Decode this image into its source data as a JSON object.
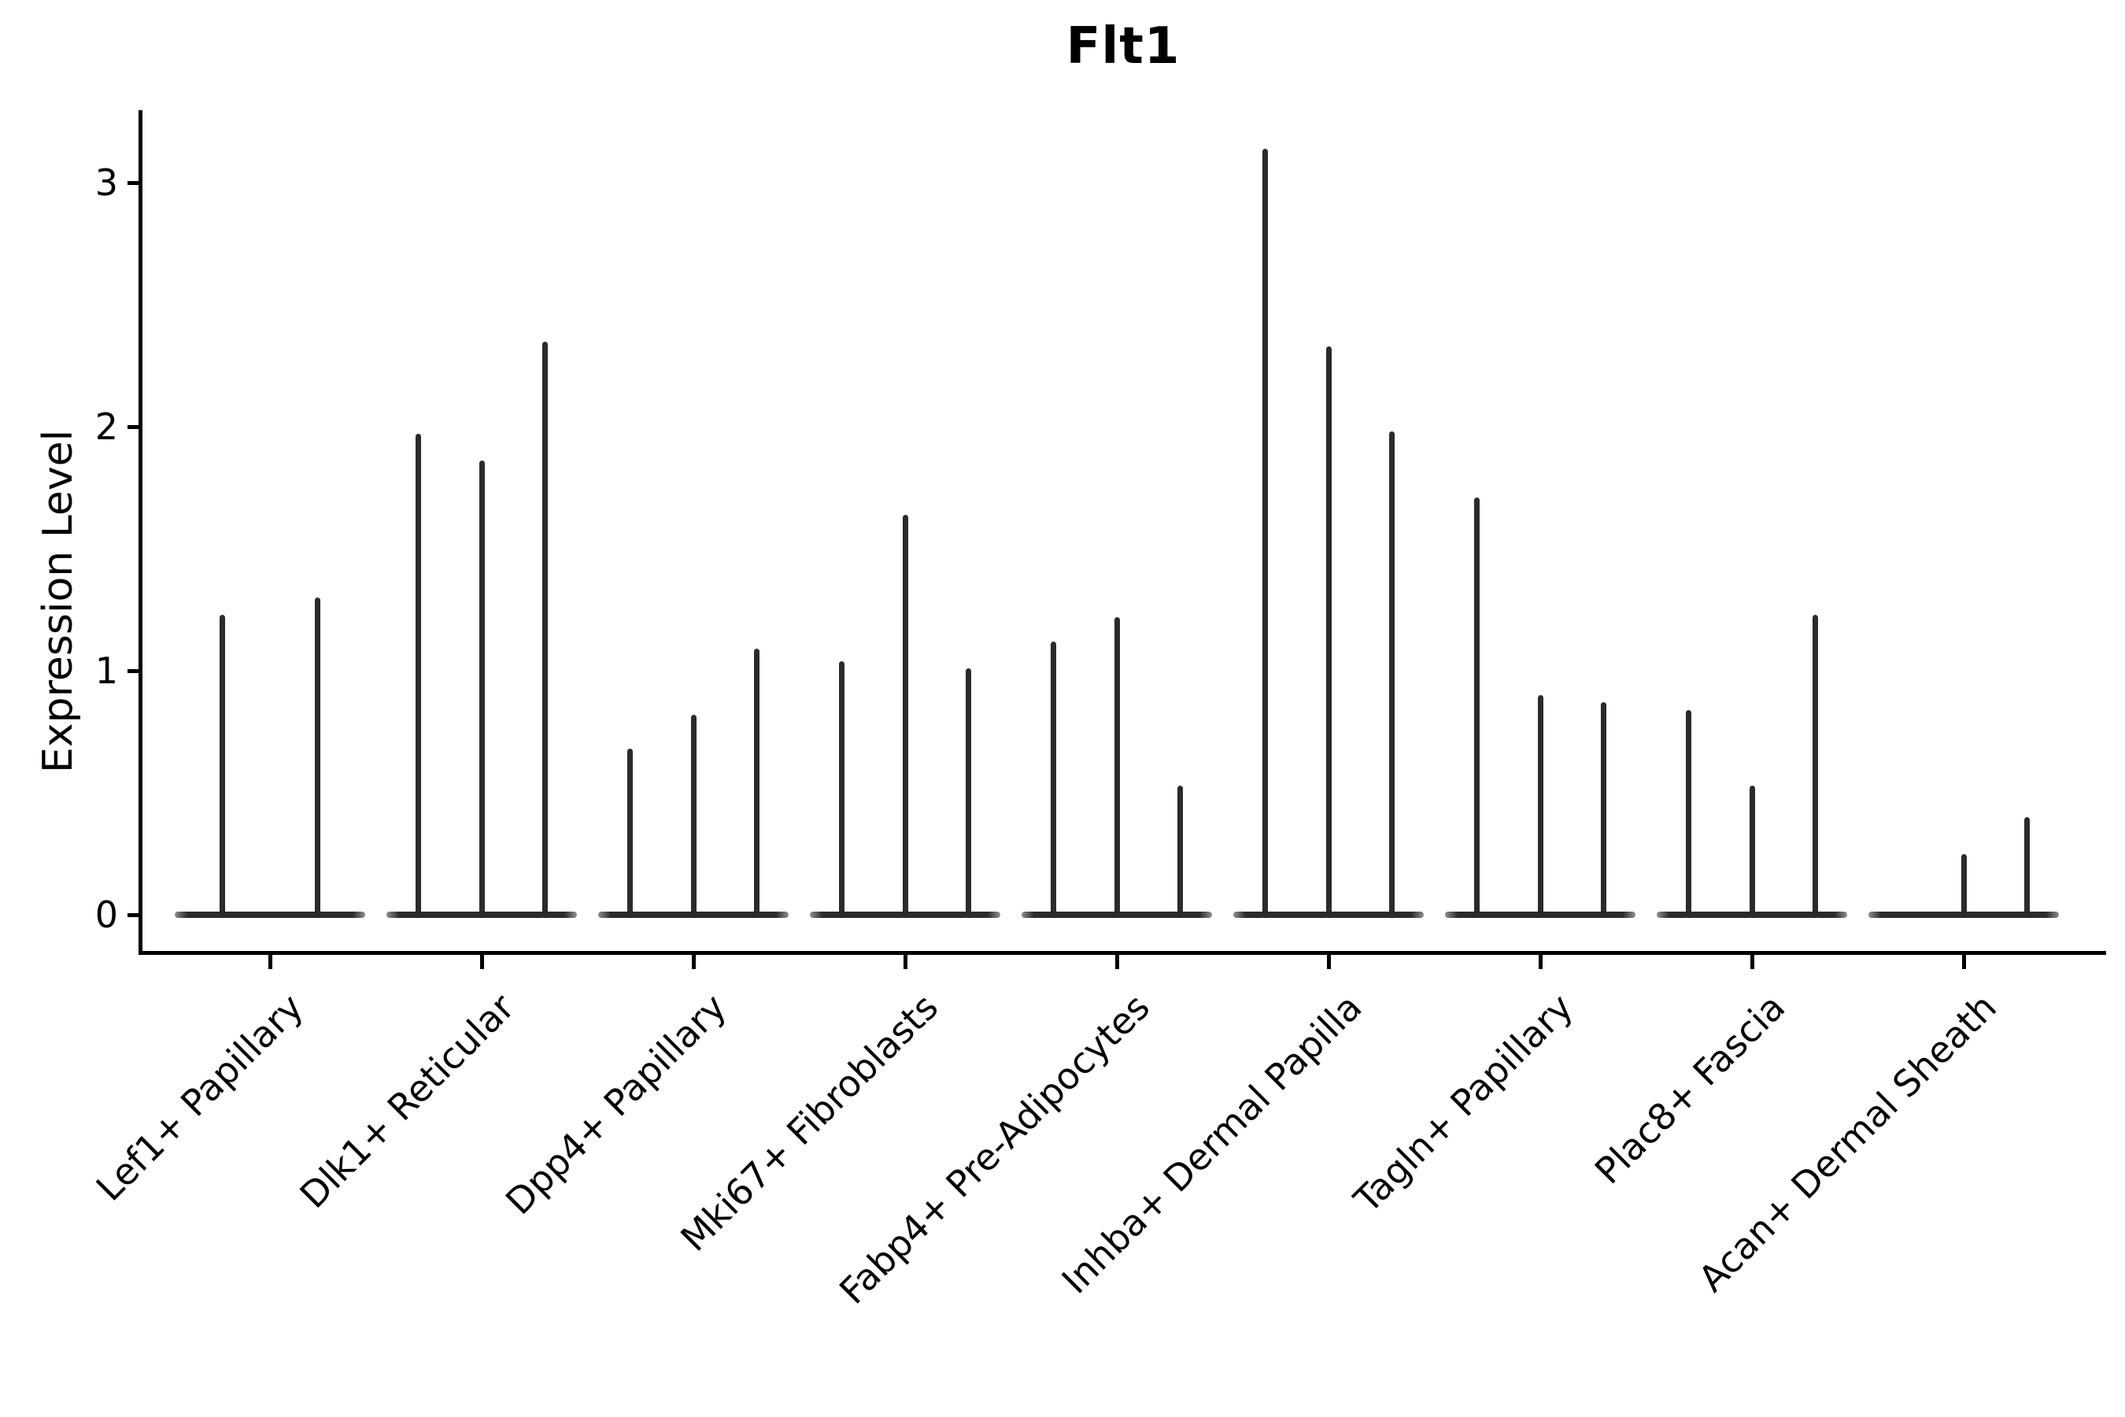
{
  "figure": {
    "background_color": "#ffffff",
    "axis_color": "#000000",
    "violin_color": "#2b2b2b"
  },
  "chart_data": {
    "type": "violin",
    "title": "Flt1",
    "xlabel": "",
    "ylabel": "Expression Level",
    "ytick_labels": [
      "0",
      "1",
      "2",
      "3"
    ],
    "yticks": [
      0,
      1,
      2,
      3
    ],
    "ylim": [
      -0.15,
      3.3
    ],
    "grid": false,
    "legend": false,
    "x_tick_rotation": 45,
    "style_note": "Seurat-style violin plot; each violin is flat at expression 0 with a thin vertical spike reaching the maximum expression value",
    "categories": [
      "Lef1+ Papillary",
      "Dlk1+ Reticular",
      "Dpp4+ Papillary",
      "Mki67+ Fibroblasts",
      "Fabp4+ Pre-Adipocytes",
      "Inhba+ Dermal Papilla",
      "Tagln+ Papillary",
      "Plac8+ Fascia",
      "Acan+ Dermal Sheath"
    ],
    "violin_max_values": [
      [
        1.23,
        1.3
      ],
      [
        1.97,
        1.86,
        2.35
      ],
      [
        0.68,
        0.82,
        1.09
      ],
      [
        1.04,
        1.64,
        1.01
      ],
      [
        1.12,
        1.22,
        0.53
      ],
      [
        3.14,
        2.33,
        1.98
      ],
      [
        1.71,
        0.9,
        0.87
      ],
      [
        0.84,
        0.53,
        1.23
      ],
      [
        0.0,
        0.25,
        0.4
      ]
    ],
    "dodge_width": 0.9
  }
}
